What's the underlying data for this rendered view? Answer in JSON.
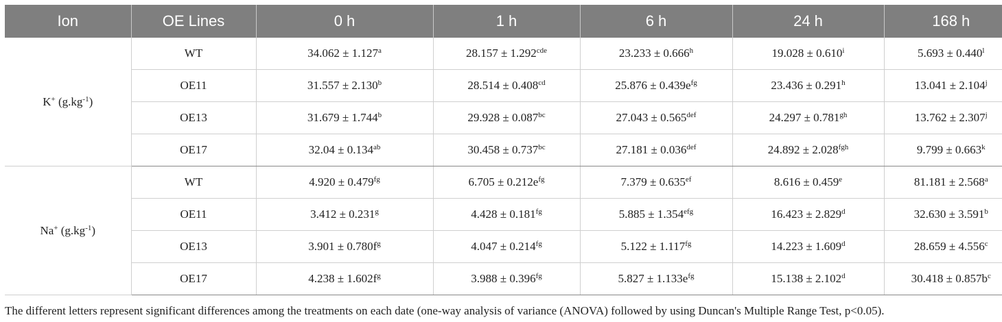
{
  "headers": [
    "Ion",
    "OE Lines",
    "0 h",
    "1 h",
    "6 h",
    "24 h",
    "168 h"
  ],
  "groups": [
    {
      "ion": {
        "base": "K",
        "sup": "+",
        "unit_pre": " (g.kg",
        "unit_sup": "-1",
        "unit_post": ")"
      },
      "rows": [
        {
          "line": "WT",
          "cells": [
            {
              "v": "34.062 ± 1.127",
              "s": "a"
            },
            {
              "v": "28.157 ± 1.292",
              "s": "cde"
            },
            {
              "v": "23.233 ± 0.666",
              "s": "h"
            },
            {
              "v": "19.028 ± 0.610",
              "s": "i"
            },
            {
              "v": "5.693 ± 0.440",
              "s": "l"
            }
          ]
        },
        {
          "line": "OE11",
          "cells": [
            {
              "v": "31.557 ± 2.130",
              "s": "b"
            },
            {
              "v": "28.514 ± 0.408",
              "s": "cd"
            },
            {
              "v": "25.876 ± 0.439e",
              "s": "fg"
            },
            {
              "v": "23.436 ± 0.291",
              "s": "h"
            },
            {
              "v": "13.041 ± 2.104",
              "s": "j"
            }
          ]
        },
        {
          "line": "OE13",
          "cells": [
            {
              "v": "31.679 ± 1.744",
              "s": "b"
            },
            {
              "v": "29.928 ± 0.087",
              "s": "bc"
            },
            {
              "v": "27.043 ± 0.565",
              "s": "def"
            },
            {
              "v": "24.297 ± 0.781",
              "s": "gh"
            },
            {
              "v": "13.762 ± 2.307",
              "s": "j"
            }
          ]
        },
        {
          "line": "OE17",
          "cells": [
            {
              "v": "32.04 ± 0.134",
              "s": "ab"
            },
            {
              "v": "30.458 ± 0.737",
              "s": "bc"
            },
            {
              "v": "27.181 ± 0.036",
              "s": "def"
            },
            {
              "v": "24.892 ± 2.028",
              "s": "fgh"
            },
            {
              "v": "9.799 ± 0.663",
              "s": "k"
            }
          ]
        }
      ]
    },
    {
      "ion": {
        "base": "Na",
        "sup": "+",
        "unit_pre": " (g.kg",
        "unit_sup": "-1",
        "unit_post": ")"
      },
      "rows": [
        {
          "line": "WT",
          "cells": [
            {
              "v": "4.920 ± 0.479",
              "s": "fg"
            },
            {
              "v": "6.705 ± 0.212e",
              "s": "fg"
            },
            {
              "v": "7.379 ± 0.635",
              "s": "ef"
            },
            {
              "v": "8.616 ± 0.459",
              "s": "e"
            },
            {
              "v": "81.181 ± 2.568",
              "s": "a"
            }
          ]
        },
        {
          "line": "OE11",
          "cells": [
            {
              "v": "3.412 ± 0.231",
              "s": "g"
            },
            {
              "v": "4.428 ± 0.181",
              "s": "fg"
            },
            {
              "v": "5.885 ± 1.354",
              "s": "efg"
            },
            {
              "v": "16.423 ± 2.829",
              "s": "d"
            },
            {
              "v": "32.630 ± 3.591",
              "s": "b"
            }
          ]
        },
        {
          "line": "OE13",
          "cells": [
            {
              "v": "3.901 ± 0.780f",
              "s": "g"
            },
            {
              "v": "4.047 ± 0.214",
              "s": "fg"
            },
            {
              "v": "5.122 ± 1.117",
              "s": "fg"
            },
            {
              "v": "14.223 ± 1.609",
              "s": "d"
            },
            {
              "v": "28.659 ± 4.556",
              "s": "c"
            }
          ]
        },
        {
          "line": "OE17",
          "cells": [
            {
              "v": "4.238 ± 1.602f",
              "s": "g"
            },
            {
              "v": "3.988 ± 0.396",
              "s": "fg"
            },
            {
              "v": "5.827 ± 1.133e",
              "s": "fg"
            },
            {
              "v": "15.138 ± 2.102",
              "s": "d"
            },
            {
              "v": "30.418 ± 0.857b",
              "s": "c"
            }
          ]
        }
      ]
    }
  ],
  "note": "The different letters represent significant differences among the treatments on each date (one-way analysis of variance (ANOVA) followed by using Duncan's Multiple Range Test, p<0.05).",
  "colors": {
    "header_bg": "#7f7f7f",
    "header_text": "#ffffff",
    "text": "#222222"
  }
}
